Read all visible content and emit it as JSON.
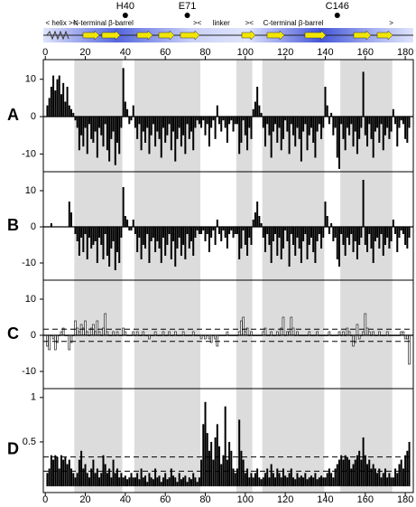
{
  "chart_data": {
    "type": "bar",
    "xlim": [
      -1,
      184
    ],
    "xticks": [
      0,
      20,
      40,
      60,
      80,
      100,
      120,
      140,
      160,
      180
    ],
    "x": [
      1,
      2,
      3,
      4,
      5,
      6,
      7,
      8,
      9,
      10,
      11,
      12,
      13,
      14,
      15,
      16,
      17,
      18,
      19,
      20,
      21,
      22,
      23,
      24,
      25,
      26,
      27,
      28,
      29,
      30,
      31,
      32,
      33,
      34,
      35,
      36,
      37,
      38,
      39,
      40,
      41,
      42,
      43,
      44,
      45,
      46,
      47,
      48,
      49,
      50,
      51,
      52,
      53,
      54,
      55,
      56,
      57,
      58,
      59,
      60,
      61,
      62,
      63,
      64,
      65,
      66,
      67,
      68,
      69,
      70,
      71,
      72,
      73,
      74,
      75,
      76,
      77,
      78,
      79,
      80,
      81,
      82,
      83,
      84,
      85,
      86,
      87,
      88,
      89,
      90,
      91,
      92,
      93,
      94,
      95,
      96,
      97,
      98,
      99,
      100,
      101,
      102,
      103,
      104,
      105,
      106,
      107,
      108,
      109,
      110,
      111,
      112,
      113,
      114,
      115,
      116,
      117,
      118,
      119,
      120,
      121,
      122,
      123,
      124,
      125,
      126,
      127,
      128,
      129,
      130,
      131,
      132,
      133,
      134,
      135,
      136,
      137,
      138,
      139,
      140,
      141,
      142,
      143,
      144,
      145,
      146,
      147,
      148,
      149,
      150,
      151,
      152,
      153,
      154,
      155,
      156,
      157,
      158,
      159,
      160,
      161,
      162,
      163,
      164,
      165,
      166,
      167,
      168,
      169,
      170,
      171,
      172,
      173,
      174,
      175,
      176,
      177,
      178,
      179,
      180,
      181,
      182
    ],
    "shaded": [
      [
        15,
        38
      ],
      [
        45,
        77
      ],
      [
        96,
        103
      ],
      [
        109,
        139
      ],
      [
        148,
        173
      ]
    ],
    "markers": [
      {
        "label": "H40",
        "x": 40
      },
      {
        "label": "E71",
        "x": 71
      },
      {
        "label": "C146",
        "x": 146
      }
    ],
    "domains": [
      {
        "label": "< helix ><",
        "x": 8
      },
      {
        "label": "N-terminal β-barrel",
        "x": 29
      },
      {
        "label": "><",
        "x": 76
      },
      {
        "label": "linker",
        "x": 88
      },
      {
        "label": "><",
        "x": 102
      },
      {
        "label": "C-terminal β-barrel",
        "x": 124
      },
      {
        "label": ">",
        "x": 173
      }
    ],
    "panels": [
      {
        "name": "A",
        "color": "#000000",
        "ylim": [
          -14.75,
          15.25
        ],
        "yticks": [
          -10,
          0,
          10
        ],
        "values": [
          3,
          5,
          8,
          11,
          7,
          10,
          11,
          6,
          9,
          4,
          8,
          3,
          2,
          1,
          -1,
          -3,
          -9,
          -5,
          -8,
          -3,
          -10,
          -2,
          -6,
          -7,
          -4,
          -11,
          -3,
          -5,
          -8,
          -2,
          -9,
          -12,
          -6,
          -4,
          -13,
          -7,
          -10,
          -3,
          13,
          4,
          2,
          -2,
          -1,
          3,
          -3,
          -6,
          -2,
          -9,
          -4,
          -7,
          -3,
          -10,
          -5,
          -2,
          -8,
          -4,
          -6,
          -11,
          -3,
          -7,
          -5,
          -2,
          -9,
          -4,
          -12,
          -6,
          -3,
          -8,
          -5,
          -10,
          -2,
          -6,
          -4,
          -9,
          -3,
          -1,
          -2,
          -3,
          -1,
          -5,
          -2,
          -8,
          -3,
          -1,
          -6,
          3,
          -2,
          -4,
          -1,
          -3,
          -7,
          -2,
          -1,
          -4,
          -2,
          -2,
          -10,
          -7,
          -1,
          -5,
          -9,
          -3,
          -6,
          2,
          4,
          8,
          3,
          1,
          -3,
          -8,
          -2,
          -5,
          -11,
          -4,
          -2,
          -7,
          -3,
          -9,
          -6,
          -1,
          -4,
          -10,
          -2,
          -5,
          -8,
          -3,
          -6,
          -12,
          -4,
          -2,
          -9,
          -5,
          -3,
          -7,
          -11,
          -4,
          -2,
          -6,
          -3,
          8,
          3,
          -2,
          1,
          -5,
          -3,
          -11,
          -14,
          -2,
          -6,
          -9,
          -3,
          -5,
          -2,
          -8,
          -4,
          -10,
          -6,
          -3,
          12,
          -5,
          -8,
          -2,
          -6,
          -11,
          -4,
          -3,
          -7,
          -2,
          -9,
          -5,
          -3,
          -6,
          -4,
          2,
          -2,
          -8,
          -3,
          -1,
          -2,
          -6,
          -7,
          -3
        ]
      },
      {
        "name": "B",
        "color": "#000000",
        "ylim": [
          -14.75,
          15.25
        ],
        "yticks": [
          -10,
          0,
          10
        ],
        "values": [
          0,
          0,
          1,
          0,
          0,
          0,
          0,
          0,
          0,
          0,
          0,
          7,
          4,
          0,
          -2,
          -4,
          -8,
          -3,
          -7,
          -2,
          -9,
          -3,
          -6,
          -5,
          -4,
          -10,
          -3,
          -5,
          -9,
          -2,
          -8,
          -11,
          -6,
          -4,
          -12,
          -7,
          -10,
          -3,
          11,
          3,
          2,
          -1,
          -1,
          2,
          -2,
          -7,
          -3,
          -9,
          -5,
          -6,
          -2,
          -10,
          -4,
          -3,
          -7,
          -4,
          -6,
          -10,
          -3,
          -8,
          -5,
          -2,
          -9,
          -4,
          -11,
          -6,
          -3,
          -8,
          -5,
          -9,
          -2,
          -6,
          -4,
          -8,
          -3,
          -1,
          -2,
          -2,
          -1,
          -4,
          -2,
          -7,
          -3,
          -1,
          -5,
          2,
          -2,
          -4,
          -1,
          -3,
          -6,
          -2,
          -1,
          -3,
          -2,
          -2,
          -9,
          -6,
          -1,
          -5,
          -8,
          -3,
          -5,
          2,
          4,
          7,
          3,
          1,
          -3,
          -7,
          -2,
          -5,
          -10,
          -4,
          -2,
          -8,
          -3,
          -9,
          -6,
          -1,
          -4,
          -11,
          -2,
          -5,
          -8,
          -3,
          -6,
          -10,
          -4,
          -2,
          -9,
          -5,
          -3,
          -7,
          -10,
          -4,
          -2,
          -6,
          -3,
          7,
          3,
          -2,
          1,
          -4,
          -3,
          -9,
          -11,
          -2,
          -5,
          -8,
          -3,
          -5,
          -2,
          -7,
          -4,
          -9,
          -5,
          -3,
          13,
          -5,
          -7,
          -2,
          -6,
          -10,
          -4,
          -3,
          -6,
          -2,
          -8,
          -5,
          -3,
          -6,
          -4,
          2,
          -2,
          -7,
          -3,
          -1,
          -2,
          -5,
          -6,
          -3
        ]
      },
      {
        "name": "C",
        "color": "#ffffff",
        "ylim": [
          -14.75,
          15.25
        ],
        "yticks": [
          -10,
          0,
          10
        ],
        "thresholds": [
          1.7,
          -1.7
        ],
        "values": [
          -3,
          -4,
          0,
          -1,
          -4,
          -2,
          0,
          1,
          2,
          0,
          0,
          -4,
          -2,
          0,
          4,
          2,
          1,
          3,
          2,
          4,
          1,
          0,
          2,
          3,
          1,
          4,
          1,
          0,
          2,
          6,
          1,
          0,
          0,
          1,
          0,
          1,
          0,
          0,
          2,
          1,
          0,
          0,
          0,
          1,
          0,
          1,
          0,
          0,
          1,
          0,
          0,
          -1,
          0,
          0,
          1,
          0,
          0,
          0,
          1,
          0,
          0,
          1,
          0,
          0,
          1,
          0,
          0,
          0,
          1,
          0,
          0,
          0,
          0,
          1,
          0,
          0,
          0,
          -1,
          0,
          -1,
          0,
          -1,
          -2,
          0,
          -1,
          -3,
          0,
          0,
          0,
          0,
          1,
          0,
          0,
          0,
          0,
          0,
          1,
          4,
          5,
          1,
          2,
          0,
          1,
          0,
          0,
          0,
          0,
          0,
          1,
          2,
          0,
          0,
          1,
          0,
          0,
          1,
          0,
          2,
          5,
          0,
          1,
          1,
          5,
          2,
          0,
          1,
          0,
          0,
          0,
          0,
          0,
          1,
          0,
          0,
          0,
          1,
          0,
          0,
          0,
          0,
          0,
          1,
          0,
          0,
          0,
          0,
          1,
          0,
          1,
          0,
          2,
          1,
          0,
          -3,
          -2,
          3,
          -1,
          0,
          1,
          6,
          2,
          1,
          0,
          1,
          0,
          0,
          1,
          0,
          0,
          0,
          1,
          0,
          0,
          0,
          0,
          0,
          0,
          1,
          1,
          -1,
          -1,
          -8
        ]
      },
      {
        "name": "D",
        "color": "#000000",
        "ylim": [
          -0.07,
          1.1
        ],
        "yticks": [
          0.5,
          1
        ],
        "thresholds": [
          0.33,
          0.17
        ],
        "values": [
          0.15,
          0.2,
          0.35,
          0.3,
          0.35,
          0.33,
          0.2,
          0.35,
          0.3,
          0.33,
          0.25,
          0.3,
          0.2,
          0.15,
          0.1,
          0.15,
          0.3,
          0.4,
          0.2,
          0.25,
          0.15,
          0.1,
          0.2,
          0.3,
          0.15,
          0.2,
          0.1,
          0.15,
          0.35,
          0.25,
          0.15,
          0.2,
          0.1,
          0.3,
          0.15,
          0.2,
          0.1,
          0.15,
          0.1,
          0.12,
          0.08,
          0.1,
          0.15,
          0.1,
          0.1,
          0.15,
          0.08,
          0.2,
          0.1,
          0.12,
          0.05,
          0.15,
          0.1,
          0.08,
          0.2,
          0.1,
          0.12,
          0.05,
          0.1,
          0.15,
          0.08,
          0.1,
          0.2,
          0.12,
          0.1,
          0.05,
          0.15,
          0.08,
          0.1,
          0.12,
          0.05,
          0.1,
          0.08,
          0.15,
          0.1,
          0.05,
          0.1,
          0.3,
          0.7,
          0.95,
          0.6,
          0.4,
          0.5,
          0.3,
          0.55,
          0.7,
          0.45,
          0.25,
          0.35,
          0.9,
          0.3,
          0.5,
          0.4,
          0.2,
          0.15,
          0.2,
          0.75,
          0.4,
          0.3,
          0.15,
          0.2,
          0.1,
          0.15,
          0.1,
          0.15,
          0.2,
          0.1,
          0.08,
          0.1,
          0.15,
          0.2,
          0.1,
          0.25,
          0.15,
          0.1,
          0.2,
          0.15,
          0.1,
          0.2,
          0.12,
          0.1,
          0.15,
          0.2,
          0.1,
          0.08,
          0.15,
          0.1,
          0.12,
          0.1,
          0.15,
          0.08,
          0.1,
          0.12,
          0.1,
          0.15,
          0.08,
          0.1,
          0.12,
          0.1,
          0.1,
          0.15,
          0.2,
          0.15,
          0.1,
          0.2,
          0.25,
          0.3,
          0.35,
          0.3,
          0.35,
          0.33,
          0.3,
          0.2,
          0.25,
          0.3,
          0.35,
          0.4,
          0.3,
          0.55,
          0.35,
          0.25,
          0.3,
          0.2,
          0.25,
          0.2,
          0.15,
          0.2,
          0.1,
          0.15,
          0.2,
          0.1,
          0.15,
          0.1,
          0.1,
          0.2,
          0.15,
          0.25,
          0.3,
          0.2,
          0.35,
          0.4,
          0.5
        ]
      }
    ]
  }
}
